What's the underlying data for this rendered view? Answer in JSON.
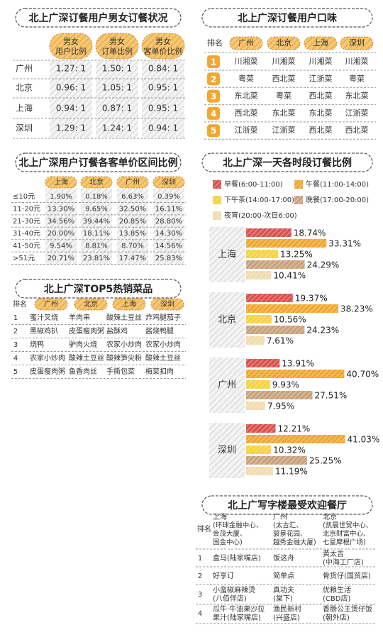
{
  "gender_table": {
    "title": "北上广深订餐用户男女订餐状况",
    "headers": [
      [
        "男女",
        "用户比例"
      ],
      [
        "男女",
        "订单比例"
      ],
      [
        "男女",
        "客单价比例"
      ]
    ],
    "rows": [
      {
        "city": "广州",
        "values": [
          "1.27: 1",
          "1.50: 1",
          "0.84: 1"
        ]
      },
      {
        "city": "北京",
        "values": [
          "0.96: 1",
          "1.05: 1",
          "0.95: 1"
        ]
      },
      {
        "city": "上海",
        "values": [
          "0.94: 1",
          "0.87: 1",
          "0.95: 1"
        ]
      },
      {
        "city": "深圳",
        "values": [
          "1.29: 1",
          "1.24: 1",
          "0.94: 1"
        ]
      }
    ]
  },
  "price_table": {
    "title": "北上广深用户订餐各客单价区间比例",
    "columns": [
      "上海",
      "北京",
      "广州",
      "深圳"
    ],
    "rows": [
      {
        "label": "≤10元",
        "values": [
          "1.90%",
          "0.18%",
          "6.63%",
          "0.39%"
        ]
      },
      {
        "label": "11-20元",
        "values": [
          "13.30%",
          "9.65%",
          "32.50%",
          "16.11%"
        ]
      },
      {
        "label": "21-30元",
        "values": [
          "34.56%",
          "39.44%",
          "20.85%",
          "28.80%"
        ]
      },
      {
        "label": "31-40元",
        "values": [
          "20.00%",
          "18.11%",
          "13.85%",
          "14.30%"
        ]
      },
      {
        "label": "41-50元",
        "values": [
          "9.54%",
          "8.81%",
          "8.70%",
          "14.56%"
        ]
      },
      {
        "label": ">51元",
        "values": [
          "20.71%",
          "23.81%",
          "17.47%",
          "25.83%"
        ]
      }
    ]
  },
  "top_dishes": {
    "title": "北上广深TOP5热销菜品",
    "rank_label": "排名",
    "columns": [
      "广州",
      "北京",
      "上海",
      "深圳"
    ],
    "rows": [
      {
        "rank": "1",
        "dishes": [
          "蜜汁叉烧",
          "羊肉串",
          "酸辣土豆丝",
          "炸鸡腿茄子"
        ]
      },
      {
        "rank": "2",
        "dishes": [
          "黑椒鸡扒",
          "皮蛋瘦肉粥",
          "盐酥鸡",
          "酱烧鸭腿"
        ]
      },
      {
        "rank": "3",
        "dishes": [
          "烧鸭",
          "驴肉火烧",
          "农家小炒肉",
          "农家小炒肉"
        ]
      },
      {
        "rank": "4",
        "dishes": [
          "农家小炒肉",
          "酸辣土豆丝",
          "酸辣笋尖粉",
          "酸辣土豆丝"
        ]
      },
      {
        "rank": "5",
        "dishes": [
          "皮蛋瘦肉粥",
          "鱼香肉丝",
          "手撕包菜",
          "梅菜扣肉"
        ]
      }
    ]
  },
  "taste_table": {
    "title": "北上广深订餐用户口味",
    "rank_label": "排名",
    "columns": [
      "广州",
      "北京",
      "上海",
      "深圳"
    ],
    "rows": [
      {
        "rank": "1",
        "values": [
          "川湘菜",
          "川湘菜",
          "川湘菜",
          "川湘菜"
        ]
      },
      {
        "rank": "2",
        "values": [
          "粤菜",
          "西北菜",
          "江浙菜",
          "粤菜"
        ]
      },
      {
        "rank": "3",
        "values": [
          "东北菜",
          "粤菜",
          "西北菜",
          "东北菜"
        ]
      },
      {
        "rank": "4",
        "values": [
          "西北菜",
          "东北菜",
          "东北菜",
          "江浙菜"
        ]
      },
      {
        "rank": "5",
        "values": [
          "江浙菜",
          "江浙菜",
          "西北菜",
          "西北菜"
        ]
      }
    ]
  },
  "chart_data": {
    "type": "bar",
    "orientation": "horizontal",
    "title": "北上广深一天各时段订餐比例",
    "categories": [
      "上海",
      "北京",
      "广州",
      "深圳"
    ],
    "series": [
      {
        "name": "早餐(6:00-11:00)",
        "color": "#d9534f",
        "values": [
          18.74,
          19.37,
          13.91,
          12.21
        ],
        "value_labels": [
          "18.74%",
          "19.37%",
          "13.91%",
          "12.21%"
        ]
      },
      {
        "name": "午餐(11:00-14:00)",
        "color": "#f0a830",
        "values": [
          33.31,
          38.23,
          40.7,
          41.03
        ],
        "value_labels": [
          "33.31%",
          "38.23%",
          "40.70%",
          "41.03%"
        ]
      },
      {
        "name": "下午茶(14:00-17:00)",
        "color": "#f5d33f",
        "values": [
          13.25,
          10.56,
          9.93,
          10.32
        ],
        "value_labels": [
          "13.25%",
          "10.56%",
          "9.93%",
          "10.32%"
        ]
      },
      {
        "name": "晚餐(17:00-20:00)",
        "color": "#c9a27e",
        "values": [
          24.29,
          24.23,
          27.51,
          25.25
        ],
        "value_labels": [
          "24.29%",
          "24.23%",
          "27.51%",
          "25.25%"
        ]
      },
      {
        "name": "夜宵(20:00-次日6:00)",
        "color": "#f0dcae",
        "values": [
          10.41,
          7.61,
          7.95,
          11.19
        ],
        "value_labels": [
          "10.41%",
          "7.61%",
          "7.95%",
          "11.19%"
        ]
      }
    ]
  },
  "restaurants": {
    "title": "北上广写字楼最受欢迎餐厅",
    "rank_label": "排名",
    "columns": [
      {
        "city": "上海",
        "lines": [
          "(环球金融中心、",
          "金茂大厦、",
          "国金中心)"
        ]
      },
      {
        "city": "广州",
        "lines": [
          "(太古汇、",
          "骏景花园、",
          "越秀金融大厦)"
        ]
      },
      {
        "city": "北京",
        "lines": [
          "(凯晨世贸中心、",
          "北京财富中心、",
          "七星摩根广场)"
        ]
      }
    ],
    "rows": [
      {
        "rank": "1",
        "cells": [
          [
            "盒马(陆家嘴店)"
          ],
          [
            "饭这舟"
          ],
          [
            "黄太吉",
            "(中海工厂店)"
          ]
        ]
      },
      {
        "rank": "2",
        "cells": [
          [
            "好享订"
          ],
          [
            "简单点"
          ],
          [
            "骨货仔(国贸店)"
          ]
        ]
      },
      {
        "rank": "3",
        "cells": [
          [
            "小蛮椒麻辣烫",
            "(八佰伴店)"
          ],
          [
            "真功夫",
            "(棠下)"
          ],
          [
            "优粮生活",
            "(CBD店)"
          ]
        ]
      },
      {
        "rank": "4",
        "cells": [
          [
            "瓜牛·牛油果沙拉",
            "果汁(陆家嘴店)"
          ],
          [
            "渔民新村",
            "(兴盛店)"
          ],
          [
            "香肠公主煲仔饭",
            "(朝外店)"
          ]
        ]
      }
    ]
  }
}
